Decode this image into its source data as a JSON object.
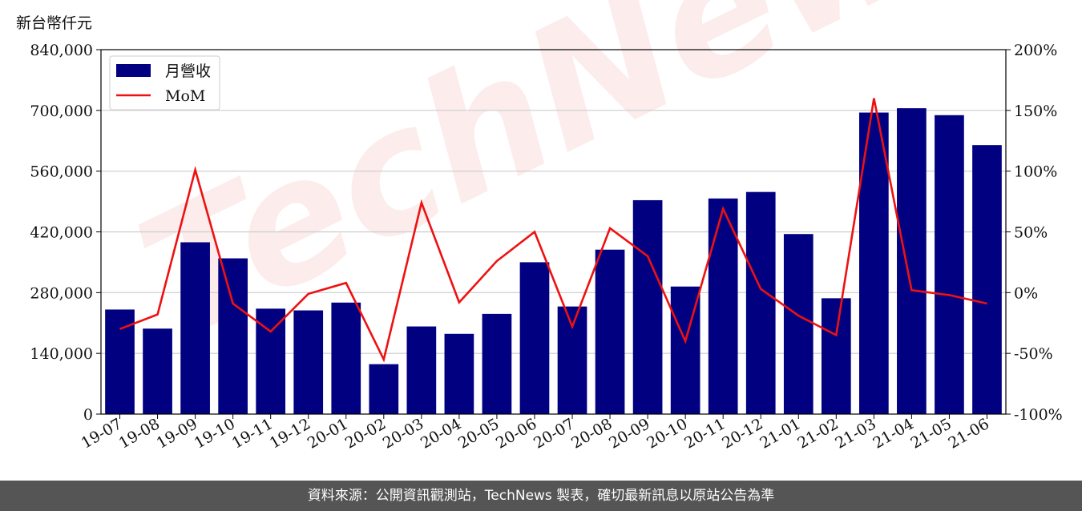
{
  "unit_label": "新台幣仟元",
  "watermark": "TechNews",
  "footer_text": "資料來源：公開資訊觀測站，TechNews 製表，確切最新訊息以原站公告為準",
  "colors": {
    "bar": "#000080",
    "line": "#ee1111",
    "grid": "#cccccc"
  },
  "chart_data": {
    "type": "bar",
    "categories": [
      "19-07",
      "19-08",
      "19-09",
      "19-10",
      "19-11",
      "19-12",
      "20-01",
      "20-02",
      "20-03",
      "20-04",
      "20-05",
      "20-06",
      "20-07",
      "20-08",
      "20-09",
      "20-10",
      "20-11",
      "20-12",
      "21-01",
      "21-02",
      "21-03",
      "21-04",
      "21-05",
      "21-06"
    ],
    "series": [
      {
        "name": "月營收",
        "type": "bar",
        "axis": "left",
        "values": [
          241000,
          197000,
          396000,
          359000,
          243000,
          239000,
          257000,
          115000,
          202000,
          185000,
          231000,
          350000,
          248000,
          379000,
          493000,
          294000,
          497000,
          512000,
          415000,
          267000,
          695000,
          705000,
          689000,
          620000
        ]
      },
      {
        "name": "MoM",
        "type": "line",
        "axis": "right",
        "values": [
          -30,
          -18,
          101,
          -9,
          -32,
          -1,
          8,
          -55,
          74,
          -8,
          26,
          50,
          -28,
          53,
          30,
          -40,
          69,
          3,
          -19,
          -35,
          160,
          2,
          -2,
          -9
        ]
      }
    ],
    "y_left": {
      "ylim": [
        0,
        840000
      ],
      "ticks": [
        0,
        140000,
        280000,
        420000,
        560000,
        700000,
        840000
      ],
      "tick_labels": [
        "0",
        "140,000",
        "280,000",
        "420,000",
        "560,000",
        "700,000",
        "840,000"
      ]
    },
    "y_right": {
      "ylim": [
        -100,
        200
      ],
      "ticks": [
        -100,
        -50,
        0,
        50,
        100,
        150,
        200
      ],
      "tick_labels": [
        "-100%",
        "-50%",
        "0%",
        "50%",
        "100%",
        "150%",
        "200%"
      ]
    },
    "grid": "horizontal",
    "legend": {
      "placement": "top-left",
      "entries": [
        "月營收",
        "MoM"
      ]
    }
  }
}
